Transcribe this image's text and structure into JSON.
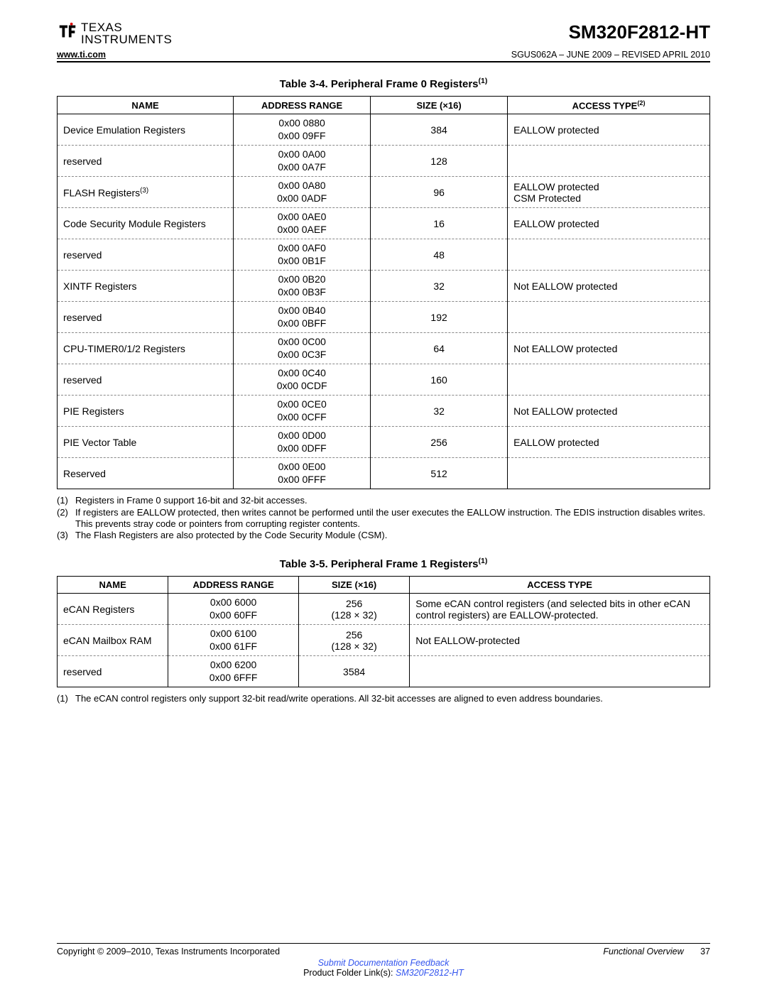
{
  "header": {
    "logo_top": "TEXAS",
    "logo_bottom": "INSTRUMENTS",
    "part_number": "SM320F2812-HT",
    "website": "www.ti.com",
    "doc_rev": "SGUS062A – JUNE 2009 – REVISED APRIL 2010"
  },
  "table1": {
    "title": "Table 3-4. Peripheral Frame 0 Registers",
    "title_sup": "(1)",
    "columns": {
      "c1": "NAME",
      "c2": "ADDRESS RANGE",
      "c3": "SIZE (×16)",
      "c4": "ACCESS TYPE",
      "c4_sup": "(2)"
    },
    "col_widths": [
      "27%",
      "21%",
      "21%",
      "31%"
    ],
    "rows": [
      {
        "name": "Device Emulation Registers",
        "addr1": "0x00 0880",
        "addr2": "0x00 09FF",
        "size": "384",
        "access": "EALLOW protected"
      },
      {
        "name": "reserved",
        "addr1": "0x00 0A00",
        "addr2": "0x00 0A7F",
        "size": "128",
        "access": ""
      },
      {
        "name": "FLASH Registers",
        "name_sup": "(3)",
        "addr1": "0x00 0A80",
        "addr2": "0x00 0ADF",
        "size": "96",
        "access": "EALLOW protected\nCSM Protected"
      },
      {
        "name": "Code Security Module Registers",
        "addr1": "0x00 0AE0",
        "addr2": "0x00 0AEF",
        "size": "16",
        "access": "EALLOW protected"
      },
      {
        "name": "reserved",
        "addr1": "0x00 0AF0",
        "addr2": "0x00 0B1F",
        "size": "48",
        "access": ""
      },
      {
        "name": "XINTF Registers",
        "addr1": "0x00 0B20",
        "addr2": "0x00 0B3F",
        "size": "32",
        "access": "Not EALLOW protected"
      },
      {
        "name": "reserved",
        "addr1": "0x00 0B40",
        "addr2": "0x00 0BFF",
        "size": "192",
        "access": ""
      },
      {
        "name": "CPU-TIMER0/1/2 Registers",
        "addr1": "0x00 0C00",
        "addr2": "0x00 0C3F",
        "size": "64",
        "access": "Not EALLOW protected"
      },
      {
        "name": "reserved",
        "addr1": "0x00 0C40",
        "addr2": "0x00 0CDF",
        "size": "160",
        "access": ""
      },
      {
        "name": "PIE Registers",
        "addr1": "0x00 0CE0",
        "addr2": "0x00 0CFF",
        "size": "32",
        "access": "Not EALLOW protected"
      },
      {
        "name": "PIE Vector Table",
        "addr1": "0x00 0D00",
        "addr2": "0x00 0DFF",
        "size": "256",
        "access": "EALLOW protected"
      },
      {
        "name": "Reserved",
        "addr1": "0x00 0E00",
        "addr2": "0x00 0FFF",
        "size": "512",
        "access": ""
      }
    ],
    "notes": [
      {
        "num": "(1)",
        "text": "Registers in Frame 0 support 16-bit and 32-bit accesses."
      },
      {
        "num": "(2)",
        "text": "If registers are EALLOW protected, then writes cannot be performed until the user executes the EALLOW instruction. The EDIS instruction disables writes. This prevents stray code or pointers from corrupting register contents."
      },
      {
        "num": "(3)",
        "text": "The Flash Registers are also protected by the Code Security Module (CSM)."
      }
    ]
  },
  "table2": {
    "title": "Table 3-5. Peripheral Frame 1 Registers",
    "title_sup": "(1)",
    "columns": {
      "c1": "NAME",
      "c2": "ADDRESS RANGE",
      "c3": "SIZE (×16)",
      "c4": "ACCESS TYPE"
    },
    "col_widths": [
      "17%",
      "20%",
      "17%",
      "46%"
    ],
    "rows": [
      {
        "name": "eCAN Registers",
        "addr1": "0x00 6000",
        "addr2": "0x00 60FF",
        "size": "256",
        "size2": "(128 × 32)",
        "access": "Some eCAN control registers (and selected bits in other eCAN control registers) are EALLOW-protected."
      },
      {
        "name": "eCAN Mailbox RAM",
        "addr1": "0x00 6100",
        "addr2": "0x00 61FF",
        "size": "256",
        "size2": "(128 × 32)",
        "access": "Not EALLOW-protected"
      },
      {
        "name": "reserved",
        "addr1": "0x00 6200",
        "addr2": "0x00 6FFF",
        "size": "3584",
        "access": ""
      }
    ],
    "notes": [
      {
        "num": "(1)",
        "text": "The eCAN control registers only support 32-bit read/write operations. All 32-bit accesses are aligned to even address boundaries."
      }
    ]
  },
  "footer": {
    "copyright": "Copyright © 2009–2010, Texas Instruments Incorporated",
    "section": "Functional Overview",
    "page": "37",
    "feedback_link": "Submit Documentation Feedback",
    "folder_text": "Product Folder Link(s): ",
    "folder_link": "SM320F2812-HT"
  }
}
